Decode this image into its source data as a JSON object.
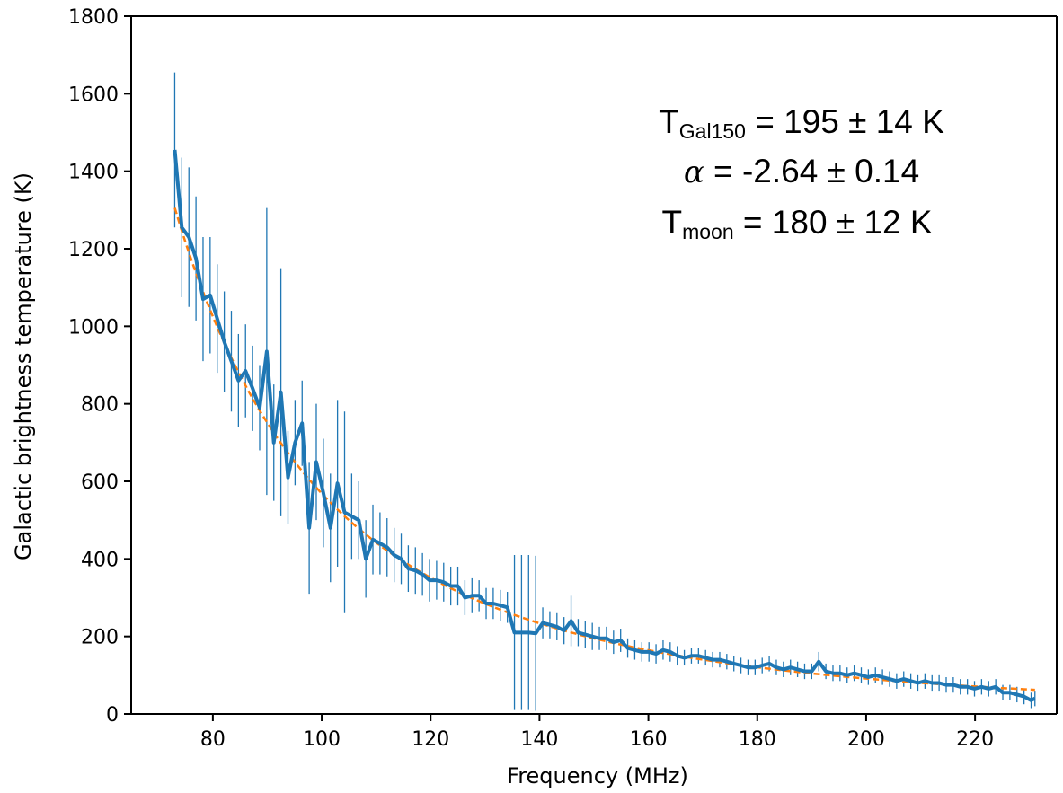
{
  "chart_data": {
    "type": "line",
    "xlabel": "Frequency (MHz)",
    "ylabel": "Galactic brightness temperature (K)",
    "xlim": [
      65,
      235
    ],
    "ylim": [
      0,
      1800
    ],
    "xticks": [
      80,
      100,
      120,
      140,
      160,
      180,
      200,
      220
    ],
    "yticks": [
      0,
      200,
      400,
      600,
      800,
      1000,
      1200,
      1400,
      1600,
      1800
    ],
    "grid": false,
    "series": [
      {
        "kind": "measured",
        "color": "#1f77b4",
        "x": [
          73.0,
          74.3,
          75.6,
          76.9,
          78.2,
          79.5,
          80.8,
          82.1,
          83.4,
          84.7,
          86.0,
          87.3,
          88.6,
          89.9,
          91.2,
          92.5,
          93.8,
          95.1,
          96.4,
          97.7,
          99.0,
          100.3,
          101.6,
          102.9,
          104.2,
          105.5,
          106.8,
          108.1,
          109.4,
          110.7,
          112.0,
          113.3,
          114.6,
          115.9,
          117.2,
          118.5,
          119.8,
          121.1,
          122.4,
          123.7,
          125.0,
          126.3,
          127.6,
          128.9,
          130.2,
          131.5,
          132.8,
          134.1,
          135.4,
          136.7,
          138.0,
          139.3,
          140.6,
          141.9,
          143.2,
          144.5,
          145.8,
          147.1,
          148.4,
          149.7,
          151.0,
          152.3,
          153.6,
          154.9,
          156.2,
          157.5,
          158.8,
          160.1,
          161.4,
          162.7,
          164.0,
          165.3,
          166.6,
          167.9,
          169.2,
          170.5,
          171.8,
          173.1,
          174.4,
          175.7,
          177.0,
          178.3,
          179.6,
          180.9,
          182.2,
          183.5,
          184.8,
          186.1,
          187.4,
          188.7,
          190.0,
          191.3,
          192.6,
          193.9,
          195.2,
          196.5,
          197.8,
          199.1,
          200.4,
          201.7,
          203.0,
          204.3,
          205.6,
          206.9,
          208.2,
          209.5,
          210.8,
          212.1,
          213.4,
          214.7,
          216.0,
          217.3,
          218.6,
          219.9,
          221.2,
          222.5,
          223.8,
          225.1,
          226.4,
          227.7,
          229.0,
          230.3,
          231.0
        ],
        "y": [
          1455,
          1255,
          1230,
          1175,
          1070,
          1080,
          1020,
          960,
          910,
          860,
          885,
          840,
          790,
          935,
          700,
          830,
          610,
          700,
          750,
          480,
          650,
          570,
          480,
          595,
          520,
          510,
          500,
          400,
          450,
          440,
          430,
          410,
          400,
          375,
          370,
          360,
          345,
          345,
          340,
          330,
          330,
          300,
          305,
          305,
          285,
          285,
          280,
          275,
          210,
          210,
          210,
          208,
          235,
          230,
          225,
          215,
          240,
          210,
          205,
          200,
          195,
          195,
          185,
          190,
          170,
          165,
          160,
          160,
          155,
          165,
          160,
          150,
          145,
          150,
          150,
          145,
          140,
          140,
          135,
          130,
          125,
          120,
          120,
          125,
          130,
          120,
          115,
          120,
          115,
          110,
          110,
          135,
          110,
          105,
          105,
          100,
          105,
          100,
          95,
          100,
          95,
          90,
          85,
          90,
          85,
          80,
          85,
          80,
          80,
          75,
          75,
          70,
          70,
          65,
          70,
          65,
          70,
          55,
          55,
          50,
          45,
          35,
          40
        ],
        "err": [
          200,
          180,
          180,
          160,
          160,
          150,
          140,
          130,
          130,
          120,
          120,
          110,
          110,
          370,
          150,
          320,
          120,
          110,
          110,
          170,
          150,
          140,
          140,
          215,
          260,
          110,
          100,
          100,
          90,
          80,
          75,
          70,
          65,
          60,
          60,
          55,
          55,
          50,
          50,
          50,
          50,
          45,
          45,
          40,
          40,
          40,
          40,
          40,
          200,
          200,
          200,
          200,
          40,
          35,
          35,
          35,
          65,
          35,
          35,
          35,
          30,
          30,
          30,
          30,
          25,
          25,
          25,
          25,
          25,
          25,
          25,
          25,
          20,
          20,
          20,
          20,
          20,
          20,
          20,
          20,
          20,
          20,
          20,
          20,
          20,
          20,
          20,
          20,
          20,
          20,
          20,
          25,
          20,
          20,
          20,
          20,
          20,
          20,
          20,
          20,
          20,
          20,
          20,
          20,
          20,
          20,
          20,
          20,
          20,
          20,
          20,
          20,
          20,
          20,
          20,
          20,
          20,
          20,
          20,
          20,
          20,
          20,
          20
        ]
      },
      {
        "kind": "fit",
        "color": "#ff7f0e",
        "T150": 195,
        "alpha": -2.64,
        "Tmoon": 180
      }
    ],
    "annotations": {
      "line1": {
        "main": "T",
        "sub": "Gal150",
        "rest": " = 195 ± 14 K"
      },
      "line2": {
        "greek": "α",
        "rest": " = -2.64 ± 0.14"
      },
      "line3": {
        "main": "T",
        "sub": "moon",
        "rest": " = 180 ± 12 K"
      }
    }
  }
}
